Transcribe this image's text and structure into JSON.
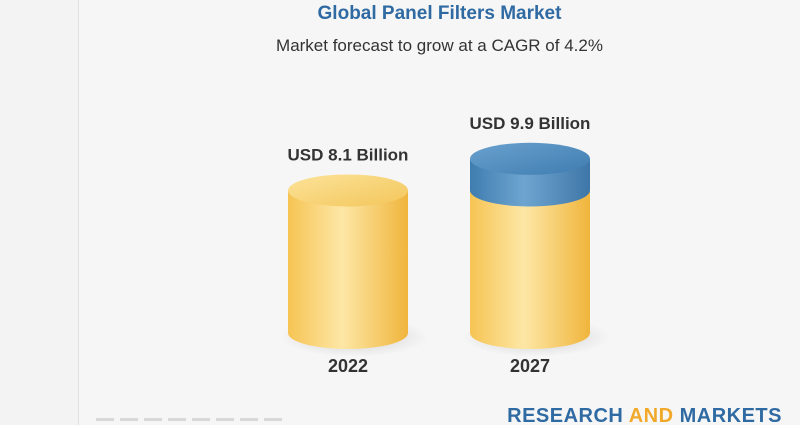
{
  "header": {
    "title": "Global Panel Filters Market",
    "subtitle": "Market forecast to grow at a CAGR of 4.2%"
  },
  "chart_data": {
    "type": "bar",
    "categories": [
      "2022",
      "2027"
    ],
    "values": [
      8.1,
      9.9
    ],
    "value_labels": [
      "USD 8.1 Billion",
      "USD 9.9 Billion"
    ],
    "title": "Global Panel Filters Market",
    "subtitle": "Market forecast to grow at a CAGR of 4.2%",
    "xlabel": "",
    "ylabel": "",
    "unit": "USD Billion",
    "growth_increment": 1.8,
    "grid": false,
    "colors": {
      "base": "#f4c24f",
      "growth": "#4a86b6"
    }
  },
  "brand": {
    "part1": "RESEARCH ",
    "part2": "AND",
    "part3": " MARKETS"
  }
}
